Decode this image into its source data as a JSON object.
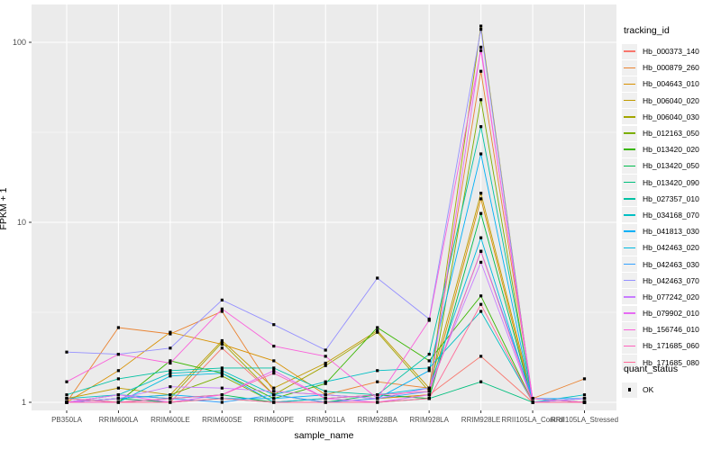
{
  "chart_data": {
    "type": "line",
    "title": "",
    "xlabel": "sample_name",
    "ylabel": "FPKM + 1",
    "y_scale": "log10",
    "y_ticks": [
      1,
      10,
      100
    ],
    "y_minor_ticks": [
      3.162,
      31.62
    ],
    "ylim": [
      0.93,
      135
    ],
    "grid": "on",
    "legend_position": "right",
    "panel_background": "#EBEBEB",
    "gridline_color": "#FFFFFF",
    "point_marker": "square",
    "point_color": "#000000",
    "categories": [
      "PB350LA",
      "RRIM600LA",
      "RRIM600LE",
      "RRIM600SE",
      "RRIM600PE",
      "RRIM901LA",
      "RRIM928BA",
      "RRIM928LA",
      "RRIM928LE",
      "RRII105LA_Control",
      "RRII105LA_Stressed"
    ],
    "series": [
      {
        "name": "Hb_000373_140",
        "color": "#F8766D",
        "values": [
          1.0,
          1.05,
          1.0,
          2.0,
          1.1,
          1.0,
          1.05,
          1.1,
          1.8,
          1.0,
          1.0
        ]
      },
      {
        "name": "Hb_000879_260",
        "color": "#EA8331",
        "values": [
          1.0,
          2.6,
          2.4,
          3.2,
          1.15,
          1.1,
          1.3,
          1.2,
          69,
          1.05,
          1.35
        ]
      },
      {
        "name": "Hb_004643_010",
        "color": "#D89000",
        "values": [
          1.0,
          1.5,
          2.45,
          2.1,
          1.7,
          1.1,
          1.05,
          1.1,
          13.5,
          1.0,
          1.0
        ]
      },
      {
        "name": "Hb_006040_020",
        "color": "#C09B00",
        "values": [
          1.05,
          1.2,
          1.1,
          2.2,
          1.2,
          1.65,
          2.5,
          1.2,
          14.5,
          1.05,
          1.0
        ]
      },
      {
        "name": "Hb_006040_030",
        "color": "#A3A500",
        "values": [
          1.0,
          1.1,
          1.05,
          2.15,
          1.1,
          1.6,
          2.45,
          1.15,
          123,
          1.0,
          1.0
        ]
      },
      {
        "name": "Hb_012163_050",
        "color": "#7CAE00",
        "values": [
          1.0,
          1.05,
          1.1,
          1.4,
          1.0,
          1.05,
          1.1,
          1.05,
          48,
          1.0,
          1.0
        ]
      },
      {
        "name": "Hb_013420_020",
        "color": "#39B600",
        "values": [
          1.0,
          1.0,
          1.7,
          1.45,
          1.05,
          1.27,
          2.6,
          1.7,
          3.9,
          1.0,
          1.0
        ]
      },
      {
        "name": "Hb_013420_050",
        "color": "#00BB4E",
        "values": [
          1.0,
          1.0,
          1.05,
          1.1,
          1.0,
          1.0,
          1.1,
          1.05,
          11.2,
          1.0,
          1.0
        ]
      },
      {
        "name": "Hb_013420_090",
        "color": "#00BF7D",
        "values": [
          1.0,
          1.05,
          1.0,
          1.05,
          1.0,
          1.0,
          1.0,
          1.05,
          1.3,
          1.0,
          1.05
        ]
      },
      {
        "name": "Hb_027357_010",
        "color": "#00C1A3",
        "values": [
          1.1,
          1.35,
          1.5,
          1.55,
          1.55,
          1.15,
          1.1,
          1.85,
          34,
          1.05,
          1.0
        ]
      },
      {
        "name": "Hb_034168_070",
        "color": "#00BFC4",
        "values": [
          1.05,
          1.1,
          1.45,
          1.5,
          1.1,
          1.3,
          1.5,
          1.55,
          3.2,
          1.0,
          1.1
        ]
      },
      {
        "name": "Hb_041813_030",
        "color": "#00B0F6",
        "values": [
          1.0,
          1.05,
          1.1,
          1.05,
          1.05,
          1.1,
          1.05,
          1.5,
          24,
          1.0,
          1.05
        ]
      },
      {
        "name": "Hb_042463_020",
        "color": "#00BAE0",
        "values": [
          1.05,
          1.0,
          1.4,
          1.45,
          1.0,
          1.05,
          1.1,
          1.2,
          8.2,
          1.0,
          1.0
        ]
      },
      {
        "name": "Hb_042463_030",
        "color": "#35A2FF",
        "values": [
          1.0,
          1.1,
          1.05,
          1.0,
          1.1,
          1.0,
          1.05,
          1.15,
          6.9,
          1.05,
          1.05
        ]
      },
      {
        "name": "Hb_042463_070",
        "color": "#9590FF",
        "values": [
          1.9,
          1.85,
          2.0,
          3.7,
          2.7,
          1.95,
          4.9,
          2.9,
          118,
          1.0,
          1.0
        ]
      },
      {
        "name": "Hb_077242_020",
        "color": "#C77CFF",
        "values": [
          1.0,
          1.05,
          1.22,
          1.2,
          1.15,
          1.1,
          1.05,
          1.2,
          6.0,
          1.0,
          1.05
        ]
      },
      {
        "name": "Hb_079902_010",
        "color": "#E76BF3",
        "values": [
          1.0,
          1.1,
          1.0,
          1.1,
          1.5,
          1.05,
          1.0,
          1.1,
          94,
          1.0,
          1.0
        ]
      },
      {
        "name": "Hb_156746_010",
        "color": "#FA62DB",
        "values": [
          1.3,
          1.85,
          1.65,
          3.3,
          2.05,
          1.8,
          1.05,
          2.85,
          90,
          1.05,
          1.0
        ]
      },
      {
        "name": "Hb_171685_060",
        "color": "#FF62BC",
        "values": [
          1.0,
          1.0,
          1.05,
          1.1,
          1.45,
          1.05,
          1.1,
          1.15,
          6.9,
          1.0,
          1.0
        ]
      },
      {
        "name": "Hb_171685_080",
        "color": "#FF6A98",
        "values": [
          1.05,
          1.0,
          1.0,
          1.05,
          1.0,
          1.0,
          1.0,
          1.05,
          3.5,
          1.0,
          1.0
        ]
      }
    ],
    "legend": {
      "series_title": "tracking_id",
      "status_title": "quant_status",
      "status_items": [
        {
          "label": "OK",
          "marker": "black-square"
        }
      ]
    }
  }
}
